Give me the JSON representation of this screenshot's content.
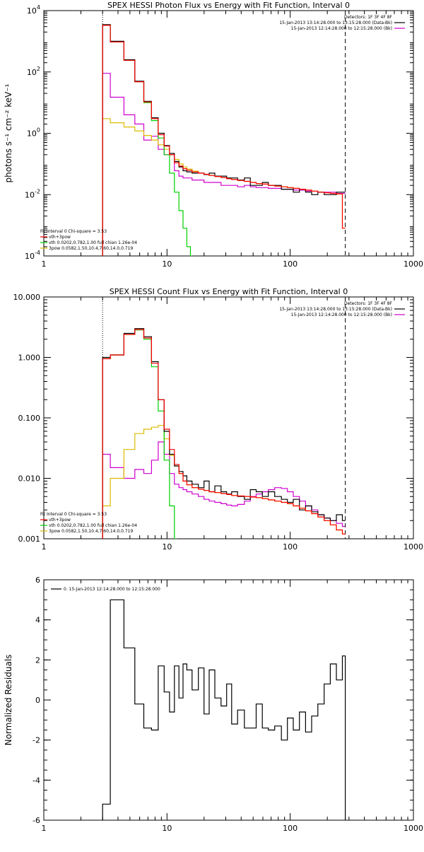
{
  "colors": {
    "background": "#ffffff",
    "axes": "#000000",
    "data": "#000000",
    "total": "#ff0000",
    "thermal": "#00d000",
    "powerlaw": "#ddbb00",
    "background_series": "#d000d0"
  },
  "chart_data": [
    {
      "type": "line",
      "title": "SPEX HESSI Photon Flux vs Energy with Fit Function, Interval 0",
      "xlabel": "",
      "ylabel": "photons s⁻¹ cm⁻² keV⁻¹",
      "xscale": "log",
      "yscale": "log",
      "xlim": [
        1,
        1000
      ],
      "ylim": [
        0.0001,
        10000
      ],
      "xticks": [
        "1",
        "10",
        "100",
        "1000"
      ],
      "yticks": [
        {
          "base": "10",
          "exp": "-4"
        },
        {
          "base": "10",
          "exp": "-2"
        },
        {
          "base": "10",
          "exp": "0"
        },
        {
          "base": "10",
          "exp": "2"
        },
        {
          "base": "10",
          "exp": "4"
        }
      ],
      "vlines": [
        3,
        280
      ],
      "legend_top": [
        "Detectors: 1F 3F 4F 8F",
        "15-Jan-2013 13:14:28.000 to 13:15:28.000 (Data-Bk)",
        "15-Jan-2013 12:14:28.000 to 12:15:28.000 (Bk)"
      ],
      "legend_bottom": [
        "Fit Interval 0   Chi-square = 3.53",
        "vth+3pow",
        "vth 0.0202,0.782,1.00  full chian 1.26e-04",
        "3pow 0.0582,1.50,10.4,7.60,14.0,0.719"
      ],
      "series": [
        {
          "name": "Data",
          "x": [
            3,
            4,
            5,
            6,
            7,
            8,
            9,
            10,
            11,
            12,
            13,
            14,
            15,
            17,
            19,
            21,
            23,
            26,
            29,
            32,
            35,
            40,
            45,
            50,
            56,
            63,
            70,
            80,
            90,
            100,
            112,
            126,
            141,
            158,
            178,
            200,
            224,
            251,
            280
          ],
          "y": [
            3500,
            1000,
            250,
            50,
            11,
            3.2,
            1.0,
            0.4,
            0.22,
            0.12,
            0.08,
            0.06,
            0.055,
            0.05,
            0.05,
            0.045,
            0.05,
            0.04,
            0.04,
            0.035,
            0.035,
            0.03,
            0.035,
            0.02,
            0.02,
            0.025,
            0.02,
            0.02,
            0.015,
            0.015,
            0.012,
            0.015,
            0.012,
            0.01,
            0.012,
            0.01,
            0.01,
            0.012,
            0.012
          ]
        },
        {
          "name": "vth+3pow",
          "x": [
            3,
            4,
            5,
            6,
            7,
            8,
            9,
            10,
            11,
            12,
            13,
            14,
            15,
            17,
            19,
            21,
            23,
            26,
            29,
            32,
            35,
            40,
            45,
            50,
            56,
            63,
            70,
            80,
            90,
            100,
            112,
            126,
            141,
            158,
            178,
            200,
            224,
            251,
            280
          ],
          "y": [
            3300,
            950,
            240,
            48,
            10.5,
            3.0,
            0.9,
            0.38,
            0.2,
            0.11,
            0.085,
            0.07,
            0.062,
            0.055,
            0.05,
            0.046,
            0.042,
            0.039,
            0.036,
            0.033,
            0.031,
            0.029,
            0.027,
            0.025,
            0.023,
            0.022,
            0.02,
            0.019,
            0.018,
            0.017,
            0.016,
            0.015,
            0.014,
            0.013,
            0.012,
            0.0115,
            0.011,
            0.0105,
            0.0008
          ]
        },
        {
          "name": "vth 0.0202,0.782,1.00",
          "x": [
            3,
            4,
            5,
            6,
            7,
            8,
            9,
            10,
            11,
            12,
            13,
            14,
            15,
            16
          ],
          "y": [
            3300,
            950,
            240,
            48,
            10,
            2.6,
            0.7,
            0.2,
            0.05,
            0.012,
            0.003,
            0.0008,
            0.0002,
            0.0001
          ]
        },
        {
          "name": "3pow 0.0582,1.50,10.4,7.60,14.0,0.719",
          "x": [
            3,
            4,
            5,
            6,
            7,
            8,
            9,
            10,
            11,
            12,
            13,
            14,
            15,
            17,
            19,
            21,
            23,
            26,
            29,
            32,
            35,
            40,
            45,
            50,
            56,
            63,
            70,
            80,
            90,
            100,
            112,
            126,
            141,
            158,
            178,
            200,
            224,
            251,
            280
          ],
          "y": [
            3.0,
            2.2,
            1.6,
            1.2,
            0.85,
            0.6,
            0.42,
            0.3,
            0.2,
            0.14,
            0.1,
            0.08,
            0.068,
            0.058,
            0.051,
            0.046,
            0.042,
            0.039,
            0.036,
            0.033,
            0.031,
            0.029,
            0.027,
            0.025,
            0.023,
            0.022,
            0.02,
            0.019,
            0.018,
            0.017,
            0.016,
            0.015,
            0.014,
            0.013,
            0.012,
            0.0115,
            0.011,
            0.0105,
            0.0008
          ]
        },
        {
          "name": "Background",
          "x": [
            3,
            4,
            5,
            6,
            7,
            8,
            9,
            10,
            11,
            12,
            13,
            14,
            15,
            17,
            19,
            21,
            23,
            26,
            29,
            32,
            35,
            40,
            45,
            50,
            56,
            63,
            70,
            80,
            90,
            100,
            112,
            126,
            141,
            158,
            178,
            200,
            224,
            251,
            280
          ],
          "y": [
            90,
            15,
            4,
            2.0,
            0.6,
            0.8,
            0.3,
            0.2,
            0.2,
            0.06,
            0.04,
            0.035,
            0.035,
            0.03,
            0.03,
            0.025,
            0.025,
            0.025,
            0.02,
            0.02,
            0.02,
            0.018,
            0.02,
            0.018,
            0.017,
            0.017,
            0.016,
            0.016,
            0.015,
            0.015,
            0.014,
            0.014,
            0.013,
            0.013,
            0.012,
            0.012,
            0.012,
            0.011,
            0.011
          ]
        }
      ]
    },
    {
      "type": "line",
      "title": "SPEX HESSI Count Flux vs Energy with Fit Function, Interval 0",
      "xlabel": "",
      "ylabel": "",
      "xscale": "log",
      "yscale": "log",
      "xlim": [
        1,
        1000
      ],
      "ylim": [
        0.001,
        10
      ],
      "xticks": [
        "1",
        "10",
        "100",
        "1000"
      ],
      "yticks": [
        {
          "base": "0.001",
          "exp": ""
        },
        {
          "base": "0.010",
          "exp": ""
        },
        {
          "base": "0.100",
          "exp": ""
        },
        {
          "base": "1.000",
          "exp": ""
        },
        {
          "base": "10.000",
          "exp": ""
        }
      ],
      "vlines": [
        3,
        280
      ],
      "legend_top": [
        "Detectors: 1F 3F 4F 8F",
        "15-Jan-2013 13:14:28.000 to 13:15:28.000 (Data-Bk)",
        "15-Jan-2013 12:14:28.000 to 12:15:28.000 (Bk)"
      ],
      "legend_bottom": [
        "Fit Interval 0   Chi-square = 3.53",
        "vth+3pow",
        "vth 0.0202,0.782,1.00  full chian 1.26e-04",
        "3pow 0.0582,1.50,10.4,7.60,14.0,0.719"
      ],
      "series": [
        {
          "name": "Data",
          "x": [
            3,
            4,
            5,
            6,
            7,
            8,
            9,
            10,
            11,
            12,
            13,
            14,
            15,
            17,
            19,
            21,
            23,
            26,
            29,
            32,
            35,
            40,
            45,
            50,
            56,
            63,
            70,
            80,
            90,
            100,
            112,
            126,
            141,
            158,
            178,
            200,
            224,
            251,
            280
          ],
          "y": [
            1.0,
            1.1,
            2.5,
            3.0,
            2.2,
            0.85,
            0.2,
            0.06,
            0.025,
            0.016,
            0.013,
            0.011,
            0.009,
            0.008,
            0.007,
            0.009,
            0.006,
            0.0075,
            0.006,
            0.0055,
            0.006,
            0.005,
            0.0045,
            0.0065,
            0.006,
            0.005,
            0.006,
            0.005,
            0.0045,
            0.004,
            0.0045,
            0.003,
            0.0035,
            0.0028,
            0.0025,
            0.0022,
            0.002,
            0.0025,
            0.002
          ]
        },
        {
          "name": "vth+3pow",
          "x": [
            3,
            4,
            5,
            6,
            7,
            8,
            9,
            10,
            11,
            12,
            13,
            14,
            15,
            17,
            19,
            21,
            23,
            26,
            29,
            32,
            35,
            40,
            45,
            50,
            56,
            63,
            70,
            80,
            90,
            100,
            112,
            126,
            141,
            158,
            178,
            200,
            224,
            251,
            280
          ],
          "y": [
            0.95,
            1.1,
            2.4,
            2.9,
            2.1,
            0.8,
            0.2,
            0.065,
            0.03,
            0.017,
            0.012,
            0.009,
            0.0078,
            0.007,
            0.0066,
            0.0063,
            0.006,
            0.0058,
            0.0056,
            0.0054,
            0.0052,
            0.0051,
            0.005,
            0.0049,
            0.0048,
            0.0046,
            0.0044,
            0.0042,
            0.004,
            0.0038,
            0.0035,
            0.0032,
            0.0029,
            0.0026,
            0.0023,
            0.002,
            0.0017,
            0.0014,
            0.0012
          ]
        },
        {
          "name": "vth 0.0202,0.782,1.00",
          "x": [
            3,
            4,
            5,
            6,
            7,
            8,
            9,
            10,
            11,
            12
          ],
          "y": [
            0.95,
            1.1,
            2.4,
            2.85,
            2.0,
            0.7,
            0.13,
            0.02,
            0.0035,
            0.0009
          ]
        },
        {
          "name": "3pow 0.0582,1.50,10.4,7.60,14.0,0.719",
          "x": [
            3,
            4,
            5,
            6,
            7,
            8,
            9,
            10,
            11,
            12,
            13,
            14,
            15,
            17,
            19,
            21,
            23,
            26,
            29,
            32,
            35,
            40,
            45,
            50,
            56,
            63,
            70,
            80,
            90,
            100,
            112,
            126,
            141,
            158,
            178,
            200,
            224,
            251,
            280
          ],
          "y": [
            0.0035,
            0.01,
            0.03,
            0.055,
            0.065,
            0.07,
            0.075,
            0.045,
            0.024,
            0.016,
            0.012,
            0.009,
            0.0078,
            0.007,
            0.0066,
            0.0063,
            0.006,
            0.0058,
            0.0056,
            0.0054,
            0.0052,
            0.0051,
            0.005,
            0.0049,
            0.0048,
            0.0046,
            0.0044,
            0.0042,
            0.004,
            0.0038,
            0.0035,
            0.0032,
            0.0029,
            0.0026,
            0.0023,
            0.002,
            0.0017,
            0.0014,
            0.0012
          ]
        },
        {
          "name": "Background",
          "x": [
            3,
            4,
            5,
            6,
            7,
            8,
            9,
            10,
            11,
            12,
            13,
            14,
            15,
            17,
            19,
            21,
            23,
            26,
            29,
            32,
            35,
            40,
            45,
            50,
            56,
            63,
            70,
            80,
            90,
            100,
            112,
            126,
            141,
            158,
            178,
            200,
            224,
            251,
            280
          ],
          "y": [
            0.025,
            0.015,
            0.01,
            0.014,
            0.012,
            0.02,
            0.04,
            0.025,
            0.012,
            0.008,
            0.007,
            0.0065,
            0.006,
            0.0055,
            0.005,
            0.0045,
            0.0042,
            0.004,
            0.0038,
            0.0036,
            0.0035,
            0.0037,
            0.0042,
            0.005,
            0.0055,
            0.006,
            0.0065,
            0.007,
            0.0068,
            0.006,
            0.005,
            0.0042,
            0.0035,
            0.003,
            0.0025,
            0.0022,
            0.002,
            0.0018,
            0.0016
          ]
        }
      ]
    },
    {
      "type": "line",
      "title": "",
      "xlabel": "",
      "ylabel": "Normalized Residuals",
      "xscale": "log",
      "yscale": "linear",
      "xlim": [
        1,
        1000
      ],
      "ylim": [
        -6,
        6
      ],
      "xticks": [
        "1",
        "10",
        "100",
        "1000"
      ],
      "yticks": [
        {
          "base": "-6",
          "exp": ""
        },
        {
          "base": "-4",
          "exp": ""
        },
        {
          "base": "-2",
          "exp": ""
        },
        {
          "base": "0",
          "exp": ""
        },
        {
          "base": "2",
          "exp": ""
        },
        {
          "base": "4",
          "exp": ""
        },
        {
          "base": "6",
          "exp": ""
        }
      ],
      "vlines": [],
      "legend_top": [
        "0. 15-Jan-2013 12:14:28.000 to 12:15:28.000"
      ],
      "legend_bottom": [],
      "series": [
        {
          "name": "0. 15-Jan-2013 12:14:28.000 to 12:15:28.000",
          "x": [
            3,
            4,
            5,
            6,
            7,
            8,
            9,
            10,
            11,
            12,
            13,
            14,
            15,
            17,
            19,
            21,
            23,
            26,
            29,
            32,
            35,
            40,
            45,
            50,
            56,
            63,
            70,
            80,
            90,
            100,
            112,
            126,
            141,
            158,
            178,
            200,
            224,
            251,
            280
          ],
          "y": [
            -5.2,
            5.0,
            2.6,
            -0.2,
            -1.4,
            -1.5,
            1.7,
            0.4,
            -0.6,
            1.7,
            0.1,
            1.8,
            1.5,
            0.5,
            1.6,
            -0.7,
            1.5,
            0.1,
            -0.3,
            0.8,
            -1.2,
            -0.5,
            -1.4,
            -1.4,
            -0.2,
            -1.4,
            -1.5,
            -1.3,
            -2.0,
            -0.9,
            -1.5,
            -0.6,
            -1.6,
            -0.8,
            -0.2,
            0.8,
            1.8,
            1.0,
            2.2
          ]
        }
      ]
    }
  ]
}
